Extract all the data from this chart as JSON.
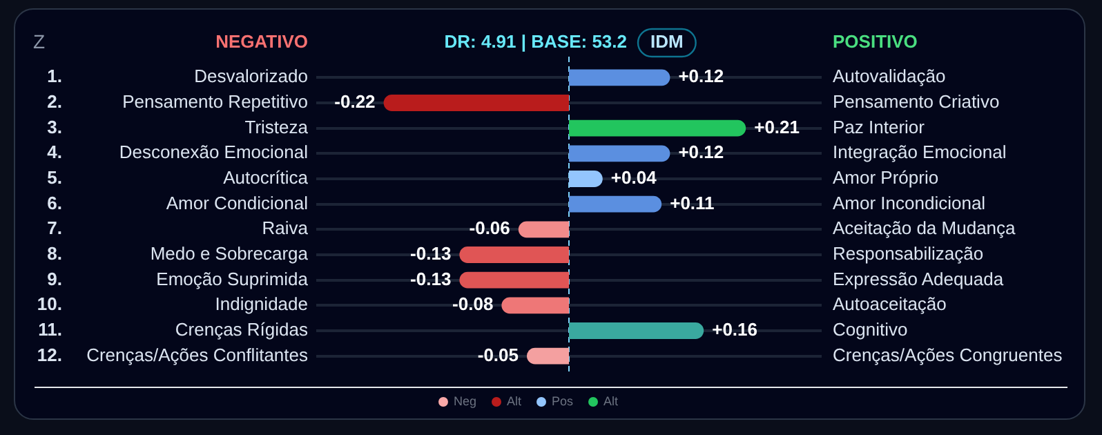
{
  "chart_data": {
    "type": "bar",
    "orientation": "horizontal",
    "stacked": true,
    "title": "DR: 4.91 | BASE: 53.2",
    "subtitle": "IDM",
    "annotations": [
      "Z",
      "NEGATIVO",
      "POSITIVO",
      "1.",
      "2.",
      "3.",
      "4.",
      "5.",
      "6.",
      "7.",
      "8.",
      "9.",
      "10.",
      "11.",
      "12."
    ],
    "categories": [
      "Desvalorizado",
      "Pensamento Repetitivo",
      "Tristeza",
      "Desconexão Emocional",
      "Autocrítica",
      "Amor Condicional",
      "Raiva",
      "Medo e Sobrecarga",
      "Emoção Suprimida",
      "Indignidade",
      "Crenças Rígidas",
      "Crenças/Ações Conflitantes"
    ],
    "y2_categories": [
      "Autovalidação",
      "Pensamento Criativo",
      "Paz Interior",
      "Integração Emocional",
      "Amor Próprio",
      "Amor Incondicional",
      "Aceitação da Mudança",
      "Responsabilização",
      "Expressão Adequada",
      "Autoaceitação",
      "Cognitivo",
      "Crenças/Ações Congruentes"
    ],
    "series": [
      {
        "name": "Neg",
        "color": "#f9a8a8",
        "values": [
          null,
          null,
          null,
          null,
          null,
          null,
          -0.06,
          -0.13,
          -0.13,
          -0.08,
          null,
          -0.05
        ],
        "colors": [
          null,
          null,
          null,
          null,
          null,
          null,
          "#f28b8b",
          "#e05555",
          "#e05555",
          "#ee7777",
          null,
          "#f4a0a0"
        ],
        "value_labels": [
          null,
          null,
          null,
          null,
          null,
          null,
          "-0.06",
          "-0.13",
          "-0.13",
          "-0.08",
          null,
          "-0.05"
        ]
      },
      {
        "name": "Alt",
        "color": "#b91c1c",
        "values": [
          null,
          -0.22,
          null,
          null,
          null,
          null,
          null,
          null,
          null,
          null,
          null,
          null
        ],
        "colors": [
          null,
          "#b91c1c",
          null,
          null,
          null,
          null,
          null,
          null,
          null,
          null,
          null,
          null
        ],
        "value_labels": [
          null,
          "-0.22",
          null,
          null,
          null,
          null,
          null,
          null,
          null,
          null,
          null,
          null
        ]
      },
      {
        "name": "Pos",
        "color": "#93c5fd",
        "values": [
          0.12,
          null,
          null,
          0.12,
          0.04,
          0.11,
          null,
          null,
          null,
          null,
          null,
          null
        ],
        "colors": [
          "#5b8fe0",
          null,
          null,
          "#5b8fe0",
          "#93c5fd",
          "#5b8fe0",
          null,
          null,
          null,
          null,
          null,
          null
        ],
        "value_labels": [
          "+0.12",
          null,
          null,
          "+0.12",
          "+0.04",
          "+0.11",
          null,
          null,
          null,
          null,
          null,
          null
        ]
      },
      {
        "name": "Alt",
        "color": "#22c55e",
        "values": [
          null,
          null,
          0.21,
          null,
          null,
          null,
          null,
          null,
          null,
          null,
          0.16,
          null
        ],
        "colors": [
          null,
          null,
          "#22c55e",
          null,
          null,
          null,
          null,
          null,
          null,
          null,
          "#3aa99f",
          null
        ],
        "value_labels": [
          null,
          null,
          "+0.21",
          null,
          null,
          null,
          null,
          null,
          null,
          null,
          "+0.16",
          null
        ]
      }
    ],
    "xlim": [
      -0.3,
      0.3
    ],
    "tick_labels": false,
    "grid": "y",
    "legend": "bottom",
    "ref_lines": [
      {
        "axis": "x",
        "value": 0,
        "color": "#7dd3fc",
        "line_style": "dashed"
      }
    ]
  }
}
